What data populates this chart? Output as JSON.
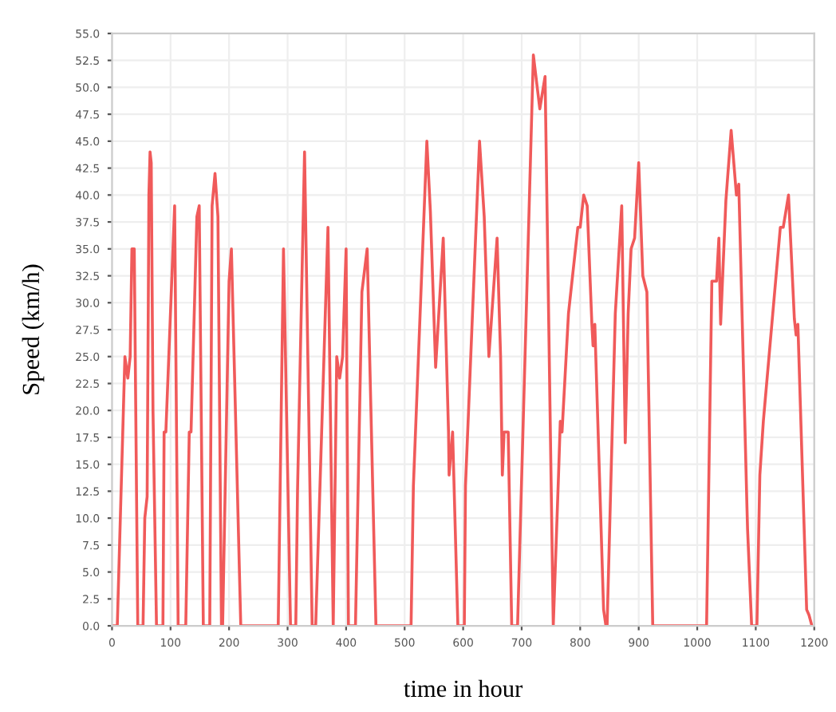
{
  "chart_data": {
    "type": "line",
    "xlabel": "time in hour",
    "ylabel": "Speed (km/h)",
    "xlim": [
      0,
      1200
    ],
    "ylim": [
      0,
      55
    ],
    "xticks": [
      0,
      100,
      200,
      300,
      400,
      500,
      600,
      700,
      800,
      900,
      1000,
      1100,
      1200
    ],
    "yticks": [
      {
        "value": 0,
        "label": "0.0"
      },
      {
        "value": 2.5,
        "label": "2.5"
      },
      {
        "value": 5,
        "label": "5.0"
      },
      {
        "value": 7.5,
        "label": "7.5"
      },
      {
        "value": 10,
        "label": "10.0"
      },
      {
        "value": 12.5,
        "label": "12.5"
      },
      {
        "value": 15,
        "label": "15.0"
      },
      {
        "value": 17.5,
        "label": "17.5"
      },
      {
        "value": 20,
        "label": "20.0"
      },
      {
        "value": 22.5,
        "label": "22.5"
      },
      {
        "value": 25,
        "label": "25.0"
      },
      {
        "value": 27.5,
        "label": "27.5"
      },
      {
        "value": 30,
        "label": "30.0"
      },
      {
        "value": 32.5,
        "label": "32.5"
      },
      {
        "value": 35,
        "label": "35.0"
      },
      {
        "value": 37.5,
        "label": "37.5"
      },
      {
        "value": 40,
        "label": "40.0"
      },
      {
        "value": 42.5,
        "label": "42.5"
      },
      {
        "value": 45,
        "label": "45.0"
      },
      {
        "value": 47.5,
        "label": "47.5"
      },
      {
        "value": 50,
        "label": "50.0"
      },
      {
        "value": 52.5,
        "label": "52.5"
      },
      {
        "value": 55,
        "label": "55.0"
      }
    ],
    "grid": true,
    "marker": "none",
    "line_style": "solid",
    "series": [
      {
        "color": "#f05a5a",
        "x": [
          0,
          9,
          22,
          27,
          31,
          34,
          38,
          44,
          53,
          56,
          60,
          62,
          63,
          65,
          67,
          70,
          76,
          87,
          89,
          92,
          107,
          113,
          126,
          132,
          135,
          145,
          149,
          156,
          167,
          171,
          176,
          181,
          187,
          189,
          200,
          204,
          220,
          284,
          293,
          305,
          314,
          317,
          329,
          342,
          348,
          369,
          378,
          384,
          389,
          394,
          400,
          404,
          416,
          427,
          436,
          451,
          511,
          515,
          538,
          544,
          553,
          566,
          575,
          576,
          582,
          591,
          602,
          604,
          628,
          636,
          644,
          658,
          664,
          667,
          670,
          677,
          683,
          693,
          720,
          731,
          740,
          754,
          763,
          766,
          769,
          780,
          796,
          800,
          806,
          812,
          820,
          822,
          825,
          840,
          844,
          846,
          860,
          871,
          877,
          882,
          887,
          893,
          900,
          907,
          914,
          924,
          1016,
          1025,
          1033,
          1037,
          1040,
          1049,
          1058,
          1067,
          1071,
          1085,
          1086,
          1093,
          1102,
          1107,
          1113,
          1142,
          1147,
          1156,
          1166,
          1169,
          1172,
          1187,
          1191,
          1196
        ],
        "values": [
          0,
          0,
          25,
          23,
          25,
          35,
          35,
          0,
          0,
          10,
          12,
          30,
          40,
          44,
          43,
          20,
          0,
          0,
          18,
          18,
          39,
          0,
          0,
          18,
          18,
          38,
          39,
          0,
          0,
          39,
          42,
          38,
          0,
          0,
          32,
          35,
          0,
          0,
          35,
          0,
          0,
          12.5,
          44,
          0,
          0,
          37,
          0,
          25,
          23,
          25,
          35,
          0,
          0,
          31,
          35,
          0,
          0,
          13,
          45,
          38.5,
          24,
          36,
          18,
          14,
          18,
          0,
          0,
          13,
          45,
          38,
          25,
          36,
          25,
          14,
          18,
          18,
          0,
          0,
          53,
          48,
          51,
          0,
          14,
          19,
          18,
          29,
          37,
          37,
          40,
          39,
          28,
          26,
          28,
          1.5,
          0,
          0,
          29,
          39,
          17,
          29,
          35,
          36,
          43,
          32.5,
          31,
          0,
          0,
          32,
          32,
          36,
          28,
          39.5,
          46,
          40,
          41,
          11,
          9,
          0,
          0,
          14,
          19,
          37,
          37,
          40,
          28.5,
          27,
          28,
          1.5,
          1,
          0
        ]
      }
    ]
  }
}
